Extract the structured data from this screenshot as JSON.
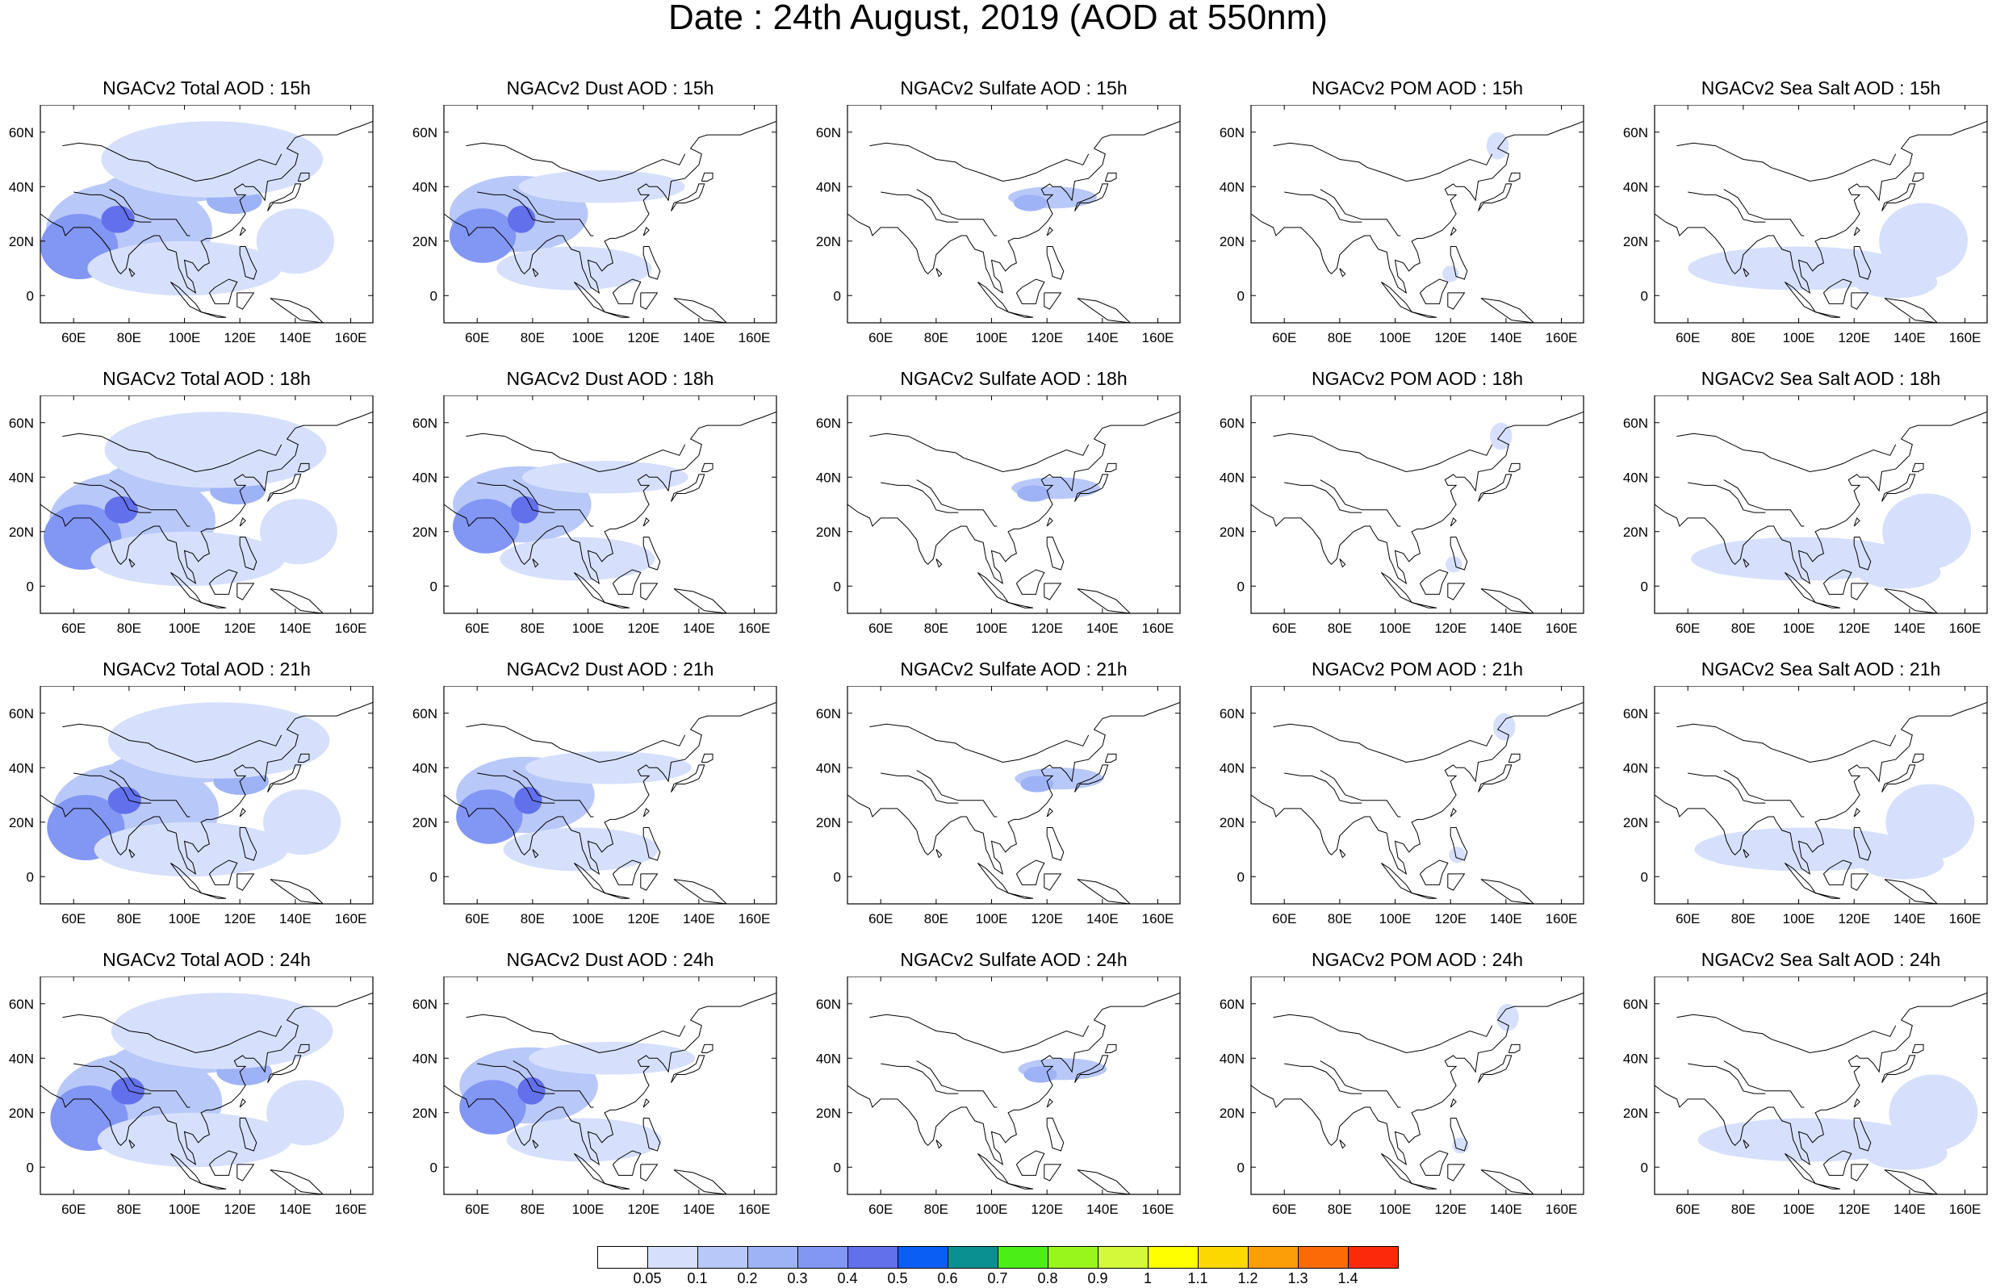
{
  "title": "Date : 24th August, 2019 (AOD at 550nm)",
  "x_tick_labels": [
    "60E",
    "80E",
    "100E",
    "120E",
    "140E",
    "160E"
  ],
  "x_tick_values": [
    60,
    80,
    100,
    120,
    140,
    160
  ],
  "y_tick_labels": [
    "60N",
    "40N",
    "20N",
    "0"
  ],
  "y_tick_values": [
    60,
    40,
    20,
    0
  ],
  "map_extent": {
    "lon": [
      48,
      168
    ],
    "lat": [
      -10,
      70
    ]
  },
  "panels": [
    {
      "title": "NGACv2 Total AOD : 15h",
      "species": "total",
      "hour": 15
    },
    {
      "title": "NGACv2 Dust AOD : 15h",
      "species": "dust",
      "hour": 15
    },
    {
      "title": "NGACv2 Sulfate AOD : 15h",
      "species": "sulfate",
      "hour": 15
    },
    {
      "title": "NGACv2 POM AOD : 15h",
      "species": "pom",
      "hour": 15
    },
    {
      "title": "NGACv2 Sea Salt AOD : 15h",
      "species": "seasalt",
      "hour": 15
    },
    {
      "title": "NGACv2 Total AOD : 18h",
      "species": "total",
      "hour": 18
    },
    {
      "title": "NGACv2 Dust AOD : 18h",
      "species": "dust",
      "hour": 18
    },
    {
      "title": "NGACv2 Sulfate AOD : 18h",
      "species": "sulfate",
      "hour": 18
    },
    {
      "title": "NGACv2 POM AOD : 18h",
      "species": "pom",
      "hour": 18
    },
    {
      "title": "NGACv2 Sea Salt AOD : 18h",
      "species": "seasalt",
      "hour": 18
    },
    {
      "title": "NGACv2 Total AOD : 21h",
      "species": "total",
      "hour": 21
    },
    {
      "title": "NGACv2 Dust AOD : 21h",
      "species": "dust",
      "hour": 21
    },
    {
      "title": "NGACv2 Sulfate AOD : 21h",
      "species": "sulfate",
      "hour": 21
    },
    {
      "title": "NGACv2 POM AOD : 21h",
      "species": "pom",
      "hour": 21
    },
    {
      "title": "NGACv2 Sea Salt AOD : 21h",
      "species": "seasalt",
      "hour": 21
    },
    {
      "title": "NGACv2 Total AOD : 24h",
      "species": "total",
      "hour": 24
    },
    {
      "title": "NGACv2 Dust AOD : 24h",
      "species": "dust",
      "hour": 24
    },
    {
      "title": "NGACv2 Sulfate AOD : 24h",
      "species": "sulfate",
      "hour": 24
    },
    {
      "title": "NGACv2 POM AOD : 24h",
      "species": "pom",
      "hour": 24
    },
    {
      "title": "NGACv2 Sea Salt  AOD : 24h",
      "species": "seasalt",
      "hour": 24
    }
  ],
  "colorbar": {
    "colors": [
      "#ffffff",
      "#d6e0fc",
      "#b8c8f8",
      "#9eb2f6",
      "#8296f4",
      "#6270ec",
      "#0a5ef4",
      "#0a9090",
      "#4cee18",
      "#98f61c",
      "#d4f83a",
      "#ffff00",
      "#fcd800",
      "#fc9e08",
      "#fc6a08",
      "#fc2a0a"
    ],
    "labels": [
      "0.05",
      "0.1",
      "0.2",
      "0.3",
      "0.4",
      "0.5",
      "0.6",
      "0.7",
      "0.8",
      "0.9",
      "1",
      "1.1",
      "1.2",
      "1.3",
      "1.4"
    ]
  },
  "plumes": {
    "total": [
      {
        "lon": 80,
        "lat": 24,
        "rx": 30,
        "ry": 18,
        "level": 2
      },
      {
        "lon": 62,
        "lat": 18,
        "rx": 14,
        "ry": 12,
        "level": 4
      },
      {
        "lon": 76,
        "lat": 28,
        "rx": 6,
        "ry": 5,
        "level": 5
      },
      {
        "lon": 95,
        "lat": 40,
        "rx": 24,
        "ry": 6,
        "level": 2
      },
      {
        "lon": 118,
        "lat": 35,
        "rx": 10,
        "ry": 5,
        "level": 3
      },
      {
        "lon": 140,
        "lat": 20,
        "rx": 14,
        "ry": 12,
        "level": 1
      },
      {
        "lon": 110,
        "lat": 50,
        "rx": 40,
        "ry": 14,
        "level": 1
      },
      {
        "lon": 100,
        "lat": 10,
        "rx": 35,
        "ry": 10,
        "level": 1
      }
    ],
    "dust": [
      {
        "lon": 75,
        "lat": 30,
        "rx": 25,
        "ry": 14,
        "level": 2
      },
      {
        "lon": 62,
        "lat": 22,
        "rx": 12,
        "ry": 10,
        "level": 4
      },
      {
        "lon": 76,
        "lat": 28,
        "rx": 5,
        "ry": 5,
        "level": 5
      },
      {
        "lon": 105,
        "lat": 40,
        "rx": 30,
        "ry": 6,
        "level": 1
      },
      {
        "lon": 95,
        "lat": 10,
        "rx": 28,
        "ry": 8,
        "level": 1
      }
    ],
    "sulfate": [
      {
        "lon": 122,
        "lat": 36,
        "rx": 16,
        "ry": 4,
        "level": 2
      },
      {
        "lon": 114,
        "lat": 34,
        "rx": 6,
        "ry": 3,
        "level": 3
      }
    ],
    "pom": [
      {
        "lon": 137,
        "lat": 55,
        "rx": 4,
        "ry": 5,
        "level": 1
      },
      {
        "lon": 120,
        "lat": 8,
        "rx": 3,
        "ry": 3,
        "level": 1
      }
    ],
    "seasalt": [
      {
        "lon": 100,
        "lat": 10,
        "rx": 40,
        "ry": 8,
        "level": 1
      },
      {
        "lon": 145,
        "lat": 20,
        "rx": 16,
        "ry": 14,
        "level": 1
      },
      {
        "lon": 75,
        "lat": 10,
        "rx": 12,
        "ry": 6,
        "level": 1
      },
      {
        "lon": 135,
        "lat": 5,
        "rx": 15,
        "ry": 6,
        "level": 1
      }
    ]
  }
}
